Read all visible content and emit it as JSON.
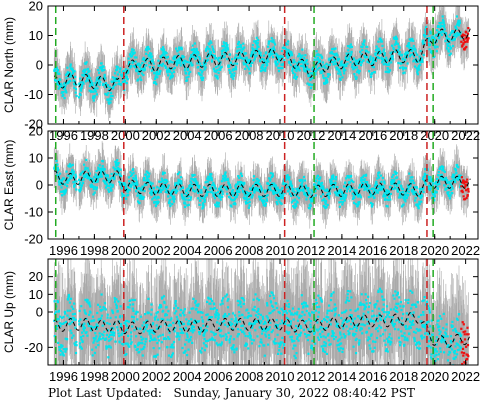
{
  "footer": {
    "label": "Plot Last Updated:",
    "timestamp": "Sunday, January 30, 2022 08:40:42 PST"
  },
  "colors": {
    "observations": "#00e5ee",
    "error_bars": "#aaaaaa",
    "model": "#000000",
    "recent_points": "#ee1111",
    "red_lines": "#cc2222",
    "green_lines": "#22aa22"
  },
  "chart_data": [
    {
      "type": "scatter",
      "ylabel": "CLAR North (mm)",
      "xlim": [
        1995.0,
        2022.8
      ],
      "ylim": [
        -20,
        20
      ],
      "xticks": [
        "1996",
        "1998",
        "2000",
        "2002",
        "2004",
        "2006",
        "2008",
        "2010",
        "2012",
        "2014",
        "2016",
        "2018",
        "2020",
        "2022"
      ],
      "yticks": [
        "-20",
        "-10",
        "0",
        "10",
        "20"
      ],
      "red_event_lines_year": [
        1999.9,
        2010.3,
        2019.5
      ],
      "green_event_lines_year": [
        1995.5,
        2012.2,
        2019.9
      ],
      "series": [
        {
          "x": [
            1995.5,
            1996.5,
            1997.5,
            1998.5,
            1999.5,
            2000.0,
            2001.0,
            2002.0,
            2003.0,
            2004.0,
            2005.0,
            2006.0,
            2007.0,
            2008.0,
            2009.0,
            2010.0,
            2011.0,
            2012.0,
            2013.0,
            2014.0,
            2015.0,
            2016.0,
            2017.0,
            2018.0,
            2019.0,
            2019.8,
            2020.5,
            2021.5,
            2022.0
          ],
          "y": [
            -6,
            -5,
            -5.5,
            -6,
            -7,
            -1,
            0,
            0,
            1,
            1,
            1.5,
            2,
            2,
            2.5,
            3,
            3.5,
            1,
            -2,
            0,
            1,
            2,
            2,
            3,
            3,
            3,
            9,
            10,
            10,
            11
          ]
        }
      ]
    },
    {
      "type": "scatter",
      "ylabel": "CLAR East (mm)",
      "xlim": [
        1995.0,
        2022.8
      ],
      "ylim": [
        -20,
        20
      ],
      "xticks": [
        "1996",
        "1998",
        "2000",
        "2002",
        "2004",
        "2006",
        "2008",
        "2010",
        "2012",
        "2014",
        "2016",
        "2018",
        "2020",
        "2022"
      ],
      "yticks": [
        "-20",
        "-10",
        "0",
        "10",
        "20"
      ],
      "red_event_lines_year": [
        1999.9,
        2010.3,
        2019.5
      ],
      "green_event_lines_year": [
        1995.5,
        2012.2,
        2019.9
      ],
      "series": [
        {
          "x": [
            1995.5,
            1996.5,
            1997.5,
            1998.5,
            1999.5,
            2000.0,
            2001.0,
            2002.0,
            2003.0,
            2004.0,
            2005.0,
            2006.0,
            2007.0,
            2008.0,
            2009.0,
            2010.0,
            2011.0,
            2012.0,
            2013.0,
            2014.0,
            2015.0,
            2016.0,
            2017.0,
            2018.0,
            2019.0,
            2019.8,
            2020.5,
            2021.5,
            2022.0
          ],
          "y": [
            3,
            2,
            3,
            3,
            3,
            0,
            -1,
            -1.5,
            -1.5,
            -2,
            -2,
            -2,
            -2,
            -2,
            -2,
            -2,
            -2,
            -2.5,
            -2,
            -2,
            -1.5,
            -1.5,
            -1.5,
            -1.5,
            -2,
            1,
            1,
            1,
            1
          ]
        }
      ]
    },
    {
      "type": "scatter",
      "ylabel": "CLAR Up (mm)",
      "xlim": [
        1995.0,
        2022.8
      ],
      "ylim": [
        -30,
        30
      ],
      "xticks": [
        "1996",
        "1998",
        "2000",
        "2002",
        "2004",
        "2006",
        "2008",
        "2010",
        "2012",
        "2014",
        "2016",
        "2018",
        "2020",
        "2022"
      ],
      "yticks": [
        "-20",
        "0",
        "10",
        "20"
      ],
      "red_event_lines_year": [
        1999.9,
        2010.3,
        2019.5
      ],
      "green_event_lines_year": [
        1995.5,
        2012.2,
        2019.9
      ],
      "series": [
        {
          "x": [
            1995.5,
            1996.5,
            1997.5,
            1998.5,
            1999.5,
            2000.0,
            2001.0,
            2002.0,
            2003.0,
            2004.0,
            2005.0,
            2006.0,
            2007.0,
            2008.0,
            2009.0,
            2010.0,
            2011.0,
            2012.0,
            2013.0,
            2014.0,
            2015.0,
            2016.0,
            2017.0,
            2018.0,
            2019.0,
            2019.8,
            2020.5,
            2021.5,
            2022.0
          ],
          "y": [
            -8,
            -7,
            -7,
            -8,
            -8,
            -9,
            -9,
            -8,
            -8,
            -8,
            -8,
            -7,
            -7,
            -7,
            -7,
            -7,
            -8,
            -8,
            -7,
            -6,
            -5,
            -5,
            -5,
            -4,
            -3,
            -15,
            -17,
            -16,
            -15
          ]
        }
      ]
    }
  ]
}
